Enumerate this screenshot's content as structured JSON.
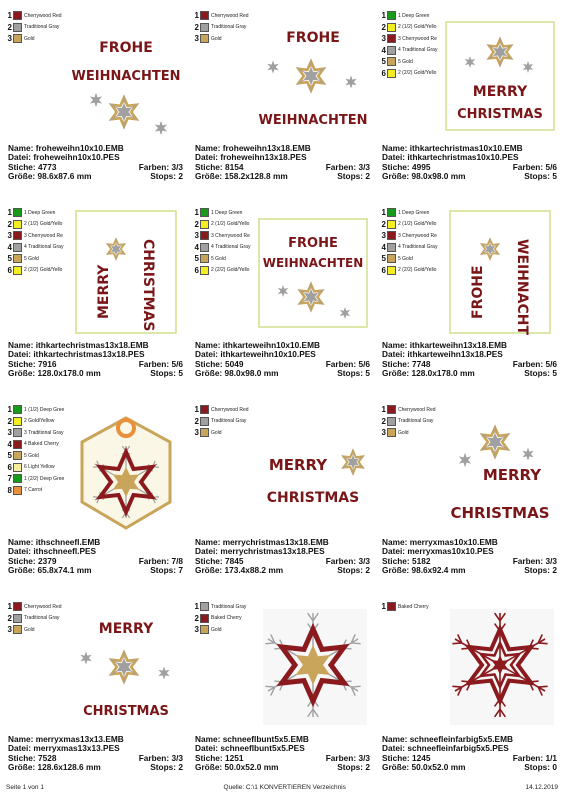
{
  "colors": {
    "cherry": "#8b1a1e",
    "gray": "#a0a0a0",
    "gold": "#c9a55b",
    "green": "#1a9a1a",
    "yellow": "#f2ee22",
    "orange": "#e8913a",
    "frame": "#cfe08c"
  },
  "labels": {
    "name": "Name:",
    "datei": "Datei:",
    "stiche": "Stiche:",
    "farben": "Farben:",
    "groesse": "Größe:",
    "stops": "Stops:"
  },
  "footer": {
    "page": "Seite 1 von 1",
    "source": "Quelle: C:\\1 KONVERTIEREN Verzeichnis",
    "date": "14.12.2019"
  },
  "designs": [
    {
      "name": "froheweihn10x10.EMB",
      "datei": "froheweihn10x10.PES",
      "stiche": "4773",
      "farben": "3/3",
      "groesse": "98.6x87.6 mm",
      "stops": "2",
      "legend": [
        {
          "n": "1",
          "label": "Cherrywood Red",
          "color": "#8b1a1e"
        },
        {
          "n": "2",
          "label": "Traditional Gray",
          "color": "#a0a0a0"
        },
        {
          "n": "3",
          "label": "Gold",
          "color": "#c9a55b"
        }
      ],
      "art": {
        "kind": "text-star",
        "lines": [
          "FROHE",
          "WEIHNACHTEN"
        ],
        "star": "bottom"
      }
    },
    {
      "name": "froheweihn13x18.EMB",
      "datei": "froheweihn13x18.PES",
      "stiche": "8154",
      "farben": "3/3",
      "groesse": "158.2x128.8 mm",
      "stops": "2",
      "legend": [
        {
          "n": "1",
          "label": "Cherrywood Red",
          "color": "#8b1a1e"
        },
        {
          "n": "2",
          "label": "Traditional Gray",
          "color": "#a0a0a0"
        },
        {
          "n": "3",
          "label": "Gold",
          "color": "#c9a55b"
        }
      ],
      "art": {
        "kind": "text-split",
        "top": "FROHE",
        "bottom": "WEIHNACHTEN"
      }
    },
    {
      "name": "ithkartechristmas10x10.EMB",
      "datei": "ithkartechristmas10x10.PES",
      "stiche": "4995",
      "farben": "5/6",
      "groesse": "98.0x98.0 mm",
      "stops": "5",
      "legend": [
        {
          "n": "1",
          "label": "1 Deep Green",
          "color": "#1a9a1a"
        },
        {
          "n": "2",
          "label": "2 (1/2) Gold/Yello",
          "color": "#f2ee22"
        },
        {
          "n": "3",
          "label": "3 Cherrywood Re",
          "color": "#8b1a1e"
        },
        {
          "n": "4",
          "label": "4 Traditional Gray",
          "color": "#a0a0a0"
        },
        {
          "n": "5",
          "label": "5 Gold",
          "color": "#c9a55b"
        },
        {
          "n": "6",
          "label": "2 (2/2) Gold/Yello",
          "color": "#f2ee22"
        }
      ],
      "art": {
        "kind": "card-square",
        "lines": [
          "MERRY",
          "CHRISTMAS"
        ]
      }
    },
    {
      "name": "ithkartechristmas13x18.EMB",
      "datei": "ithkartechristmas13x18.PES",
      "stiche": "7916",
      "farben": "5/6",
      "groesse": "128.0x178.0 mm",
      "stops": "5",
      "legend": [
        {
          "n": "1",
          "label": "1 Deep Green",
          "color": "#1a9a1a"
        },
        {
          "n": "2",
          "label": "2 (1/2) Gold/Yello",
          "color": "#f2ee22"
        },
        {
          "n": "3",
          "label": "3 Cherrywood Re",
          "color": "#8b1a1e"
        },
        {
          "n": "4",
          "label": "4 Traditional Gray",
          "color": "#a0a0a0"
        },
        {
          "n": "5",
          "label": "5 Gold",
          "color": "#c9a55b"
        },
        {
          "n": "6",
          "label": "2 (2/2) Gold/Yello",
          "color": "#f2ee22"
        }
      ],
      "art": {
        "kind": "card-vertical",
        "lines": [
          "MERRY",
          "CHRISTMAS"
        ]
      }
    },
    {
      "name": "ithkarteweihn10x10.EMB",
      "datei": "ithkarteweihn10x10.PES",
      "stiche": "5049",
      "farben": "5/6",
      "groesse": "98.0x98.0 mm",
      "stops": "5",
      "legend": [
        {
          "n": "1",
          "label": "1 Deep Green",
          "color": "#1a9a1a"
        },
        {
          "n": "2",
          "label": "2 (1/2) Gold/Yello",
          "color": "#f2ee22"
        },
        {
          "n": "3",
          "label": "3 Cherrywood Re",
          "color": "#8b1a1e"
        },
        {
          "n": "4",
          "label": "4 Traditional Gray",
          "color": "#a0a0a0"
        },
        {
          "n": "5",
          "label": "5 Gold",
          "color": "#c9a55b"
        },
        {
          "n": "6",
          "label": "2 (2/2) Gold/Yello",
          "color": "#f2ee22"
        }
      ],
      "art": {
        "kind": "card-square-top",
        "lines": [
          "FROHE",
          "WEIHNACHTEN"
        ]
      }
    },
    {
      "name": "ithkarteweihn13x18.EMB",
      "datei": "ithkarteweihn13x18.PES",
      "stiche": "7748",
      "farben": "5/6",
      "groesse": "128.0x178.0 mm",
      "stops": "5",
      "legend": [
        {
          "n": "1",
          "label": "1 Deep Green",
          "color": "#1a9a1a"
        },
        {
          "n": "2",
          "label": "2 (1/2) Gold/Yello",
          "color": "#f2ee22"
        },
        {
          "n": "3",
          "label": "3 Cherrywood Re",
          "color": "#8b1a1e"
        },
        {
          "n": "4",
          "label": "4 Traditional Gray",
          "color": "#a0a0a0"
        },
        {
          "n": "5",
          "label": "5 Gold",
          "color": "#c9a55b"
        },
        {
          "n": "6",
          "label": "2 (2/2) Gold/Yello",
          "color": "#f2ee22"
        }
      ],
      "art": {
        "kind": "card-vertical",
        "lines": [
          "FROHE",
          "WEIHNACHTEN"
        ]
      }
    },
    {
      "name": "ithschneefl.EMB",
      "datei": "ithschneefl.PES",
      "stiche": "2379",
      "farben": "7/8",
      "groesse": "65.8x74.1 mm",
      "stops": "7",
      "legend": [
        {
          "n": "1",
          "label": "1 (1/2) Deep Gree",
          "color": "#1a9a1a"
        },
        {
          "n": "2",
          "label": "2 Gold/Yellow",
          "color": "#f2ee22"
        },
        {
          "n": "3",
          "label": "3 Traditional Gray",
          "color": "#a0a0a0"
        },
        {
          "n": "4",
          "label": "4 Baked Cherry",
          "color": "#8b1a1e"
        },
        {
          "n": "5",
          "label": "5 Gold",
          "color": "#c9a55b"
        },
        {
          "n": "6",
          "label": "6 Light Yellow",
          "color": "#f7ee9a"
        },
        {
          "n": "7",
          "label": "1 (2/2) Deep Gree",
          "color": "#1a9a1a"
        },
        {
          "n": "8",
          "label": "7 Carrot",
          "color": "#e8913a"
        }
      ],
      "art": {
        "kind": "tag"
      }
    },
    {
      "name": "merrychristmas13x18.EMB",
      "datei": "merrychristmas13x18.PES",
      "stiche": "7845",
      "farben": "3/3",
      "groesse": "173.4x88.2 mm",
      "stops": "2",
      "legend": [
        {
          "n": "1",
          "label": "Cherrywood Red",
          "color": "#8b1a1e"
        },
        {
          "n": "2",
          "label": "Traditional Gray",
          "color": "#a0a0a0"
        },
        {
          "n": "3",
          "label": "Gold",
          "color": "#c9a55b"
        }
      ],
      "art": {
        "kind": "text-star",
        "lines": [
          "MERRY",
          "CHRISTMAS"
        ],
        "star": "right"
      }
    },
    {
      "name": "merryxmas10x10.EMB",
      "datei": "merryxmas10x10.PES",
      "stiche": "5182",
      "farben": "3/3",
      "groesse": "98.6x92.4 mm",
      "stops": "2",
      "legend": [
        {
          "n": "1",
          "label": "Cherrywood Red",
          "color": "#8b1a1e"
        },
        {
          "n": "2",
          "label": "Traditional Gray",
          "color": "#a0a0a0"
        },
        {
          "n": "3",
          "label": "Gold",
          "color": "#c9a55b"
        }
      ],
      "art": {
        "kind": "text-star",
        "lines": [
          "MERRY",
          "CHRISTMAS"
        ],
        "star": "topleft"
      }
    },
    {
      "name": "merryxmas13x13.EMB",
      "datei": "merryxmas13x13.PES",
      "stiche": "7528",
      "farben": "3/3",
      "groesse": "128.6x128.6 mm",
      "stops": "2",
      "legend": [
        {
          "n": "1",
          "label": "Cherrywood Red",
          "color": "#8b1a1e"
        },
        {
          "n": "2",
          "label": "Traditional Gray",
          "color": "#a0a0a0"
        },
        {
          "n": "3",
          "label": "Gold",
          "color": "#c9a55b"
        }
      ],
      "art": {
        "kind": "text-split",
        "top": "MERRY",
        "bottom": "CHRISTMAS"
      }
    },
    {
      "name": "schneeflbunt5x5.EMB",
      "datei": "schneeflbunt5x5.PES",
      "stiche": "1251",
      "farben": "3/3",
      "groesse": "50.0x52.0 mm",
      "stops": "2",
      "legend": [
        {
          "n": "1",
          "label": "Traditional Gray",
          "color": "#a0a0a0"
        },
        {
          "n": "2",
          "label": "Baked Cherry",
          "color": "#8b1a1e"
        },
        {
          "n": "3",
          "label": "Gold",
          "color": "#c9a55b"
        }
      ],
      "art": {
        "kind": "snowflake-color"
      }
    },
    {
      "name": "schneefleinfarbig5x5.EMB",
      "datei": "schneefleinfarbig5x5.PES",
      "stiche": "1245",
      "farben": "1/1",
      "groesse": "50.0x52.0 mm",
      "stops": "0",
      "legend": [
        {
          "n": "1",
          "label": "Baked Cherry",
          "color": "#8b1a1e"
        }
      ],
      "art": {
        "kind": "snowflake-mono"
      }
    }
  ]
}
